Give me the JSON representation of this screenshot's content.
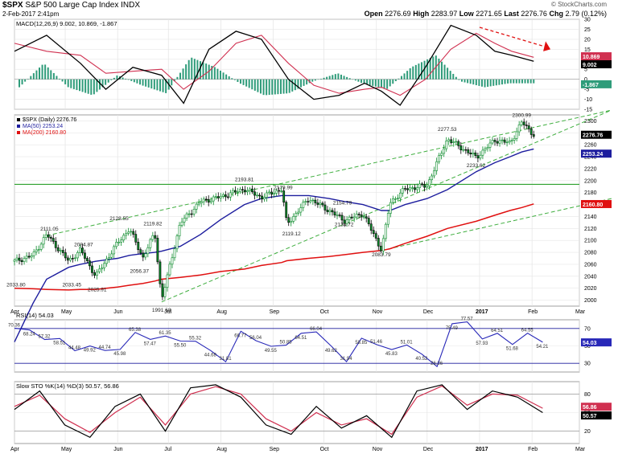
{
  "header": {
    "symbol": "$SPX",
    "name": "S&P 500 Large Cap Index",
    "exchange": "INDX",
    "date_line": "2-Feb-2017 2:41pm",
    "source": "© StockCharts.com",
    "open_label": "Open",
    "open": "2276.69",
    "high_label": "High",
    "high": "2283.97",
    "low_label": "Low",
    "low": "2271.65",
    "last_label": "Last",
    "last": "2276.76",
    "chg_label": "Chg",
    "chg": "2.79 (0.12%)"
  },
  "colors": {
    "price_up": "#0a8a2a",
    "ma50": "#1d1d9e",
    "ma200": "#e01010",
    "macd_line": "#000000",
    "signal_line": "#d03050",
    "histogram": "#2f9c7a",
    "trend_dash": "#3fae3f",
    "support_line": "#2ea12e",
    "rsi_line": "#2828b8",
    "stoch_k": "#000000",
    "stoch_d": "#d03050"
  },
  "chart_data": [
    {
      "type": "line",
      "panel": "MACD",
      "legend": "MACD(12,26,9) 9.002, 10.869, -1.867",
      "legend_parts": {
        "name": "MACD(12,26,9)",
        "macd": "9.002",
        "signal": "10.869",
        "hist": "-1.867"
      },
      "ylim": [
        -15,
        30
      ],
      "yticks": [
        -15,
        -10,
        -5,
        0,
        5,
        10,
        15,
        20,
        25,
        30
      ],
      "axis_badges": [
        "10.869",
        "9.002",
        "-1.867"
      ],
      "x": [
        "2016-04-01",
        "2016-04-20",
        "2016-05-10",
        "2016-05-25",
        "2016-06-10",
        "2016-06-27",
        "2016-07-10",
        "2016-07-25",
        "2016-08-10",
        "2016-08-25",
        "2016-09-10",
        "2016-09-25",
        "2016-10-10",
        "2016-10-25",
        "2016-11-04",
        "2016-11-15",
        "2016-11-30",
        "2016-12-15",
        "2016-12-30",
        "2017-01-10",
        "2017-01-20",
        "2017-02-02"
      ],
      "series": [
        {
          "role": "macd",
          "values": [
            14,
            22,
            8,
            -5,
            6,
            2,
            -12,
            15,
            24,
            20,
            0,
            -10,
            -8,
            -2,
            -6,
            -13,
            6,
            27,
            22,
            14,
            12,
            9
          ]
        },
        {
          "role": "signal",
          "values": [
            18,
            14,
            12,
            3,
            4,
            5,
            -5,
            4,
            18,
            22,
            8,
            -3,
            -7,
            -5,
            -4,
            -8,
            0,
            15,
            23,
            18,
            14,
            11
          ]
        },
        {
          "role": "histogram",
          "values": [
            -4,
            8,
            -4,
            -8,
            2,
            -3,
            -7,
            11,
            6,
            -2,
            -8,
            -7,
            -1,
            3,
            -2,
            -5,
            6,
            12,
            -1,
            -4,
            -2,
            -2
          ]
        }
      ],
      "annotation": "red dashed arrow pointing down-right over Jan-Feb 2017 MACD decline"
    },
    {
      "type": "line",
      "panel": "Price",
      "title": "$SPX (Daily) 2276.76",
      "legend": [
        {
          "label": "$SPX (Daily) 2276.76",
          "color": "#000000"
        },
        {
          "label": "MA(50) 2253.24",
          "color": "#1d1d9e"
        },
        {
          "label": "MA(200) 2160.80",
          "color": "#e01010"
        }
      ],
      "ylim": [
        1990,
        2310
      ],
      "yticks": [
        2000,
        2020,
        2040,
        2060,
        2080,
        2100,
        2120,
        2140,
        2160,
        2180,
        2200,
        2220,
        2240,
        2260,
        2280,
        2300
      ],
      "axis_badges": [
        "2276.76",
        "2253.24",
        "2160.80"
      ],
      "x": [
        "2016-04-01",
        "2016-04-12",
        "2016-04-20",
        "2016-05-03",
        "2016-05-10",
        "2016-05-19",
        "2016-06-01",
        "2016-06-08",
        "2016-06-16",
        "2016-06-23",
        "2016-06-27",
        "2016-07-08",
        "2016-07-20",
        "2016-08-01",
        "2016-08-15",
        "2016-08-25",
        "2016-09-06",
        "2016-09-09",
        "2016-09-22",
        "2016-10-04",
        "2016-10-13",
        "2016-10-24",
        "2016-11-04",
        "2016-11-09",
        "2016-11-18",
        "2016-12-01",
        "2016-12-13",
        "2016-12-30",
        "2017-01-10",
        "2017-01-19",
        "2017-01-26",
        "2017-02-02"
      ],
      "series": [
        {
          "name": "$SPX (Daily)",
          "values": [
            2065,
            2075,
            2110,
            2065,
            2084,
            2040,
            2096,
            2119,
            2071,
            2113,
            2000,
            2129,
            2165,
            2173,
            2186,
            2172,
            2186,
            2127,
            2170,
            2150,
            2133,
            2145,
            2084,
            2163,
            2186,
            2192,
            2270,
            2239,
            2268,
            2263,
            2298,
            2277
          ]
        },
        {
          "name": "MA(50)",
          "values": [
            1930,
            1995,
            2035,
            2055,
            2060,
            2065,
            2070,
            2075,
            2078,
            2080,
            2082,
            2090,
            2110,
            2135,
            2160,
            2170,
            2175,
            2175,
            2175,
            2170,
            2165,
            2160,
            2150,
            2150,
            2160,
            2170,
            2185,
            2215,
            2230,
            2240,
            2248,
            2253
          ]
        },
        {
          "name": "MA(200)",
          "values": [
            2020,
            2019,
            2018,
            2017,
            2018,
            2018,
            2022,
            2025,
            2028,
            2032,
            2035,
            2038,
            2042,
            2048,
            2052,
            2058,
            2063,
            2066,
            2070,
            2073,
            2076,
            2080,
            2083,
            2086,
            2095,
            2107,
            2120,
            2132,
            2142,
            2150,
            2155,
            2161
          ]
        }
      ],
      "labels": [
        "2033.80",
        "2111.05",
        "2033.45",
        "2084.87",
        "2025.91",
        "2128.55",
        "2056.37",
        "2119.82",
        "1991.68",
        "2193.81",
        "2179.99",
        "2119.12",
        "2154.79",
        "2134.72",
        "2083.79",
        "2277.53",
        "2233.62",
        "2300.99"
      ],
      "horizontal_line": {
        "value": 2193.81
      },
      "trendlines": "upper wedge line from Apr 2016 through Aug 2016 highs; lower line from Jun lows through Nov low; channel support from Nov low"
    },
    {
      "type": "line",
      "panel": "RSI",
      "legend": "RSI(14) 54.03",
      "legend_parts": {
        "name": "RSI(14)",
        "value": "54.03"
      },
      "ylim": [
        20,
        80
      ],
      "yticks": [
        30,
        50,
        70
      ],
      "right_ticks": [
        "90",
        "70",
        "54.03",
        "30",
        "10"
      ],
      "reference_lines": [
        70,
        30
      ],
      "labels": [
        "70.36",
        "68.24",
        "57.32",
        "58.51",
        "44.48",
        "49.92",
        "44.74",
        "45.98",
        "65.38",
        "57.47",
        "61.35",
        "55.50",
        "55.32",
        "44.68",
        "31.81",
        "66.77",
        "56.04",
        "49.55",
        "50.85",
        "64.51",
        "66.04",
        "49.62",
        "31.94",
        "58.85",
        "51.46",
        "45.83",
        "51.01",
        "40.52",
        "26.26",
        "75.49",
        "77.57",
        "57.93",
        "64.51",
        "51.68",
        "64.55",
        "54.21"
      ]
    },
    {
      "type": "line",
      "panel": "Stochastic",
      "legend": "Slow STO %K(14) %D(3) 50.57, 56.86",
      "legend_parts": {
        "name": "Slow STO %K(14) %D(3)",
        "k": "50.57",
        "d": "56.86"
      },
      "ylim": [
        0,
        100
      ],
      "yticks": [
        20,
        50,
        80
      ],
      "right_ticks": [
        "80",
        "56.86",
        "50.57",
        "20"
      ],
      "reference_lines": [
        80,
        20
      ],
      "series": [
        {
          "role": "k",
          "values": [
            55,
            85,
            30,
            10,
            60,
            80,
            20,
            90,
            95,
            75,
            30,
            15,
            60,
            25,
            45,
            10,
            85,
            95,
            55,
            85,
            75,
            50
          ]
        },
        {
          "role": "d",
          "values": [
            60,
            78,
            40,
            18,
            50,
            75,
            30,
            80,
            92,
            80,
            40,
            20,
            50,
            30,
            40,
            15,
            75,
            93,
            62,
            80,
            78,
            57
          ]
        }
      ]
    }
  ],
  "xaxis": {
    "month_labels": [
      "Apr",
      "May",
      "Jun",
      "Jul",
      "Aug",
      "Sep",
      "Oct",
      "Nov",
      "Dec",
      "2017",
      "Feb",
      "Mar"
    ]
  }
}
